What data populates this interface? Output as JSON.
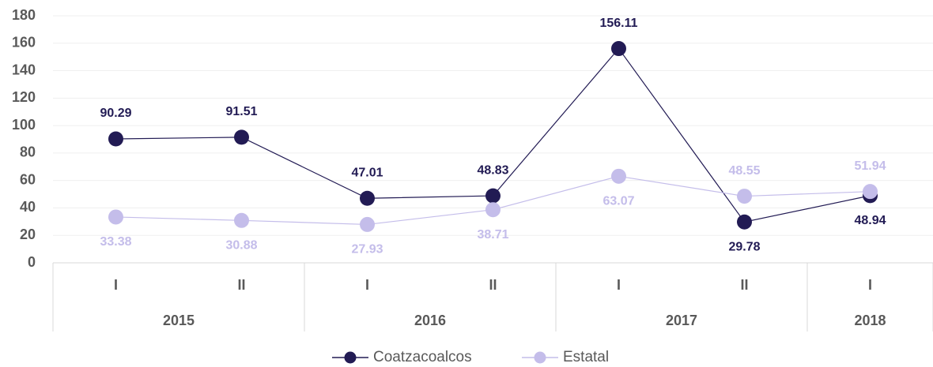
{
  "chart_data": {
    "type": "line",
    "category_groups": [
      {
        "label": "2015",
        "categories": [
          "I",
          "II"
        ]
      },
      {
        "label": "2016",
        "categories": [
          "I",
          "II"
        ]
      },
      {
        "label": "2017",
        "categories": [
          "I",
          "II"
        ]
      },
      {
        "label": "2018",
        "categories": [
          "I"
        ]
      }
    ],
    "series": [
      {
        "name": "Coatzacoalcos",
        "color": "#221b54",
        "values": [
          90.29,
          91.51,
          47.01,
          48.83,
          156.11,
          29.78,
          48.94
        ]
      },
      {
        "name": "Estatal",
        "color": "#c4bdea",
        "values": [
          33.38,
          30.88,
          27.93,
          38.71,
          63.07,
          48.55,
          51.94
        ]
      }
    ],
    "ylim": [
      0,
      180
    ],
    "yticks": [
      0,
      20,
      40,
      60,
      80,
      100,
      120,
      140,
      160,
      180
    ],
    "grid": true,
    "legend": "bottom"
  }
}
